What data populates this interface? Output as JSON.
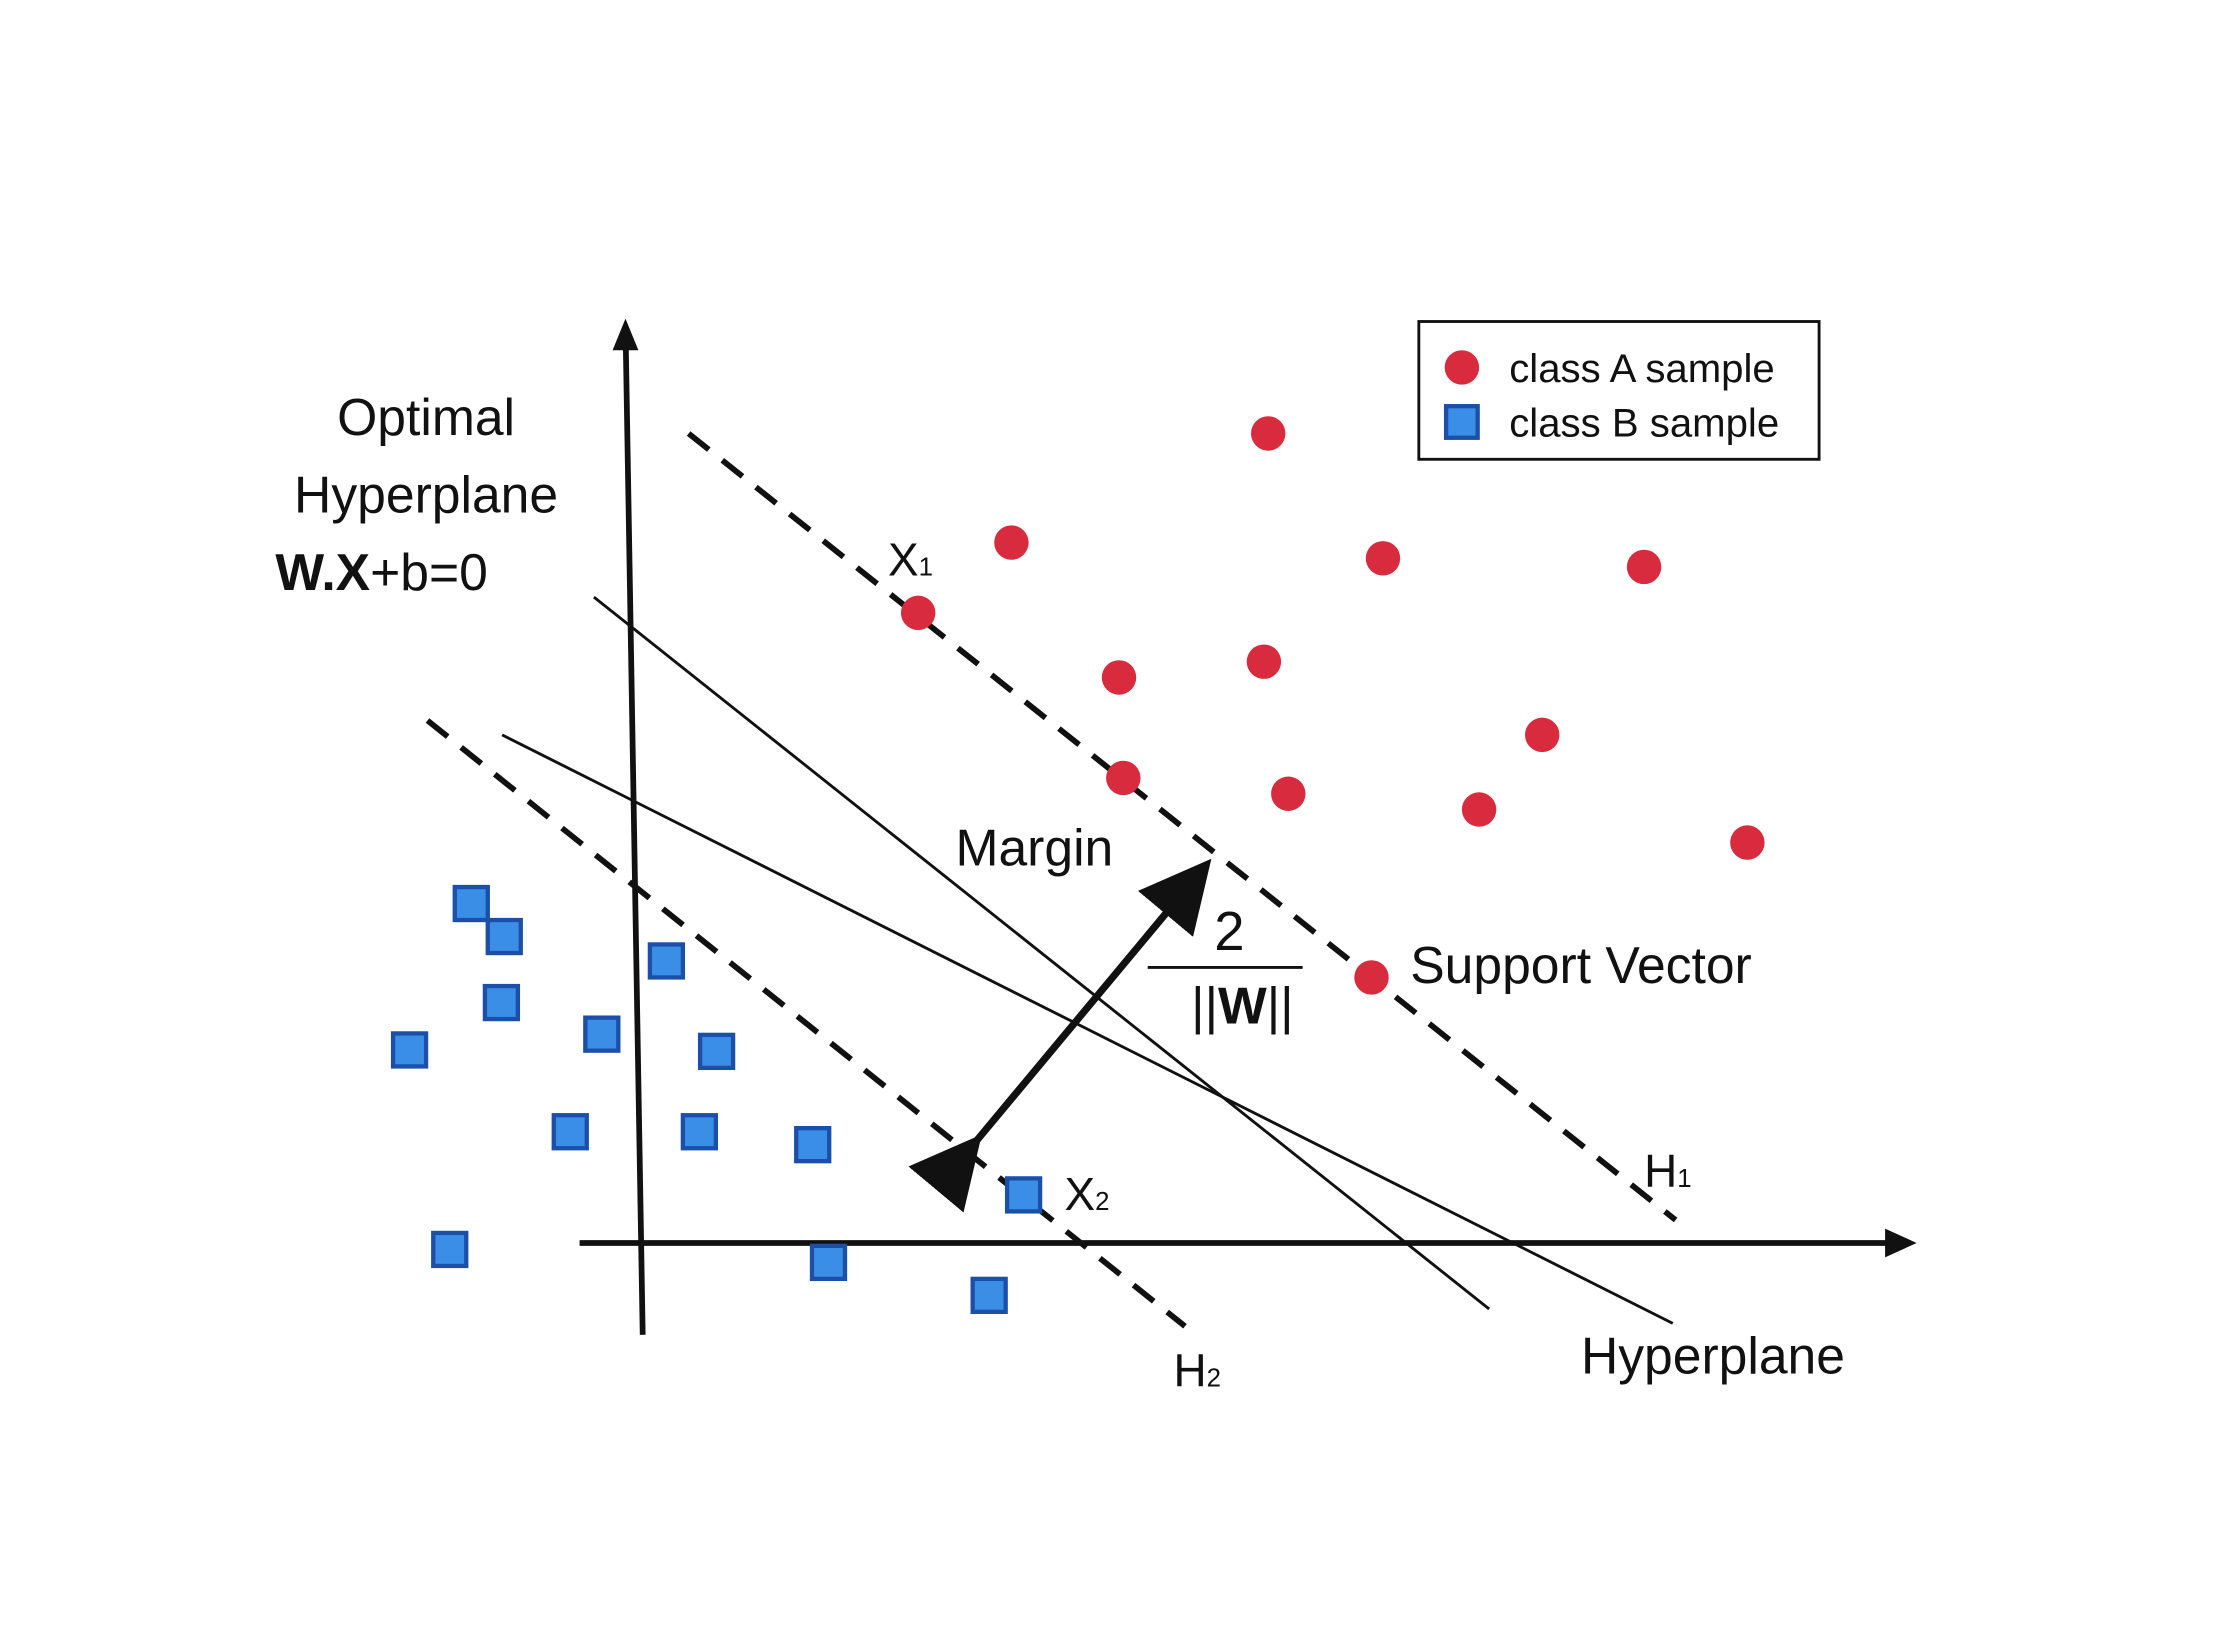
{
  "title_block": {
    "line1": "Optimal",
    "line2": "Hyperplane",
    "equation_bold": "W.X",
    "equation_rest": "+b=0"
  },
  "legend": {
    "class_a": "class A sample",
    "class_b": "class B sample"
  },
  "labels": {
    "margin": "Margin",
    "fraction_numerator": "2",
    "fraction_bars_left": "||",
    "fraction_bold": "W",
    "fraction_bars_right": "||",
    "support_vector": "Support Vector",
    "x1_main": "X",
    "x1_sub": "1",
    "x2_main": "X",
    "x2_sub": "2",
    "h1_main": "H",
    "h1_sub": "1",
    "h2_main": "H",
    "h2_sub": "2",
    "hyperplane": "Hyperplane"
  },
  "colors": {
    "class_a": "#d92b3e",
    "class_b_fill": "#3a8ee6",
    "class_b_stroke": "#1b4fa8",
    "lines": "#111111"
  },
  "icons": {
    "class_a_marker": "red-circle-icon",
    "class_b_marker": "blue-square-icon"
  }
}
